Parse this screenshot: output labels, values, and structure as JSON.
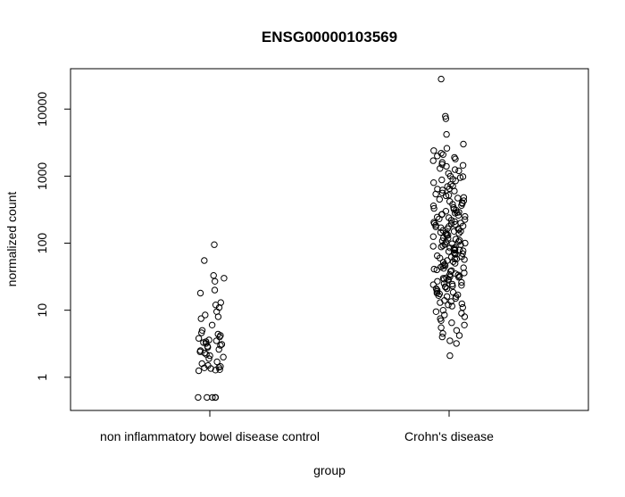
{
  "chart_data": {
    "type": "scatter",
    "title": "ENSG00000103569",
    "xlabel": "group",
    "ylabel": "normalized count",
    "y_scale": "log",
    "ylim": [
      0.32,
      40000
    ],
    "grid": false,
    "categories": [
      "non inflammatory bowel disease control",
      "Crohn's disease"
    ],
    "y_ticks": [
      1,
      10,
      100,
      1000,
      10000
    ],
    "y_tick_labels": [
      "1",
      "10",
      "100",
      "1000",
      "10000"
    ],
    "series": [
      {
        "values": [
          95,
          55,
          33,
          30,
          27,
          20,
          18,
          13,
          12,
          11,
          9.5,
          8.5,
          8,
          7.5,
          6,
          5,
          4.6,
          4.4,
          4.2,
          4,
          3.8,
          3.6,
          3.5,
          3.4,
          3.3,
          3.2,
          3.1,
          3.0,
          2.9,
          2.8,
          2.6,
          2.5,
          2.4,
          2.3,
          2.2,
          2.1,
          2.0,
          1.9,
          1.7,
          1.6,
          1.5,
          1.45,
          1.4,
          1.38,
          1.35,
          1.3,
          1.28,
          1.25,
          0.5,
          0.5,
          0.5,
          0.5,
          0.5
        ]
      },
      {
        "values": [
          28000,
          7800,
          7200,
          4200,
          3000,
          2600,
          2400,
          2200,
          2000,
          1900,
          1700,
          1600,
          1500,
          1400,
          1300,
          1200,
          1100,
          1000,
          950,
          900,
          850,
          800,
          750,
          700,
          650,
          600,
          560,
          520,
          480,
          450,
          420,
          400,
          380,
          360,
          340,
          320,
          300,
          290,
          280,
          270,
          260,
          250,
          240,
          230,
          220,
          210,
          200,
          195,
          190,
          185,
          180,
          175,
          170,
          165,
          160,
          155,
          150,
          145,
          140,
          135,
          130,
          125,
          120,
          115,
          110,
          105,
          100,
          98,
          95,
          92,
          90,
          88,
          85,
          82,
          80,
          78,
          75,
          72,
          70,
          68,
          65,
          62,
          60,
          58,
          55,
          52,
          50,
          48,
          46,
          44,
          42,
          40,
          38,
          36,
          35,
          34,
          32,
          31,
          30,
          29,
          28,
          27,
          26,
          25,
          24,
          23,
          22,
          21,
          20,
          19,
          18,
          17,
          16,
          15,
          14,
          13,
          12,
          11,
          10,
          9.5,
          9,
          8.5,
          8,
          7.5,
          7,
          6.5,
          6,
          5.5,
          5,
          4.5,
          4.2,
          4,
          3.5,
          3.2,
          2.1,
          1800,
          1250,
          880,
          640,
          470,
          330,
          245,
          178,
          132,
          96,
          71,
          53,
          39,
          29,
          21,
          16,
          11.5,
          2100,
          1450,
          980,
          710,
          510,
          365,
          268,
          196,
          143,
          104,
          77,
          57,
          41,
          30.5,
          22.5,
          16.5,
          12.5,
          620,
          430,
          310,
          225,
          162,
          118,
          86,
          63,
          46,
          33.5,
          24.5,
          18.5,
          13.5,
          540,
          390,
          285,
          205,
          150,
          108,
          79,
          58,
          43,
          31.5,
          23.5,
          17.5
        ]
      }
    ]
  }
}
